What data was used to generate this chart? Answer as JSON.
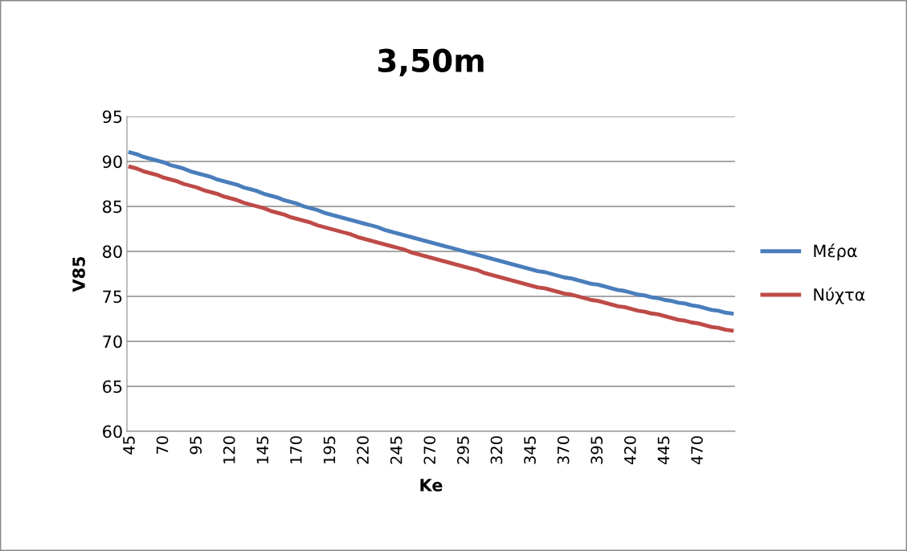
{
  "chart_data": {
    "type": "line",
    "title": "3,50m",
    "xlabel": "Ke",
    "ylabel": "V85",
    "categories": [
      "45",
      null,
      null,
      null,
      null,
      "70",
      null,
      null,
      null,
      null,
      "95",
      null,
      null,
      null,
      null,
      "120",
      null,
      null,
      null,
      null,
      "145",
      null,
      null,
      null,
      null,
      "170",
      null,
      null,
      null,
      null,
      "195",
      null,
      null,
      null,
      null,
      "220",
      null,
      null,
      null,
      null,
      "245",
      null,
      null,
      null,
      null,
      "270",
      null,
      null,
      null,
      null,
      "295",
      null,
      null,
      null,
      null,
      "320",
      null,
      null,
      null,
      null,
      "345",
      null,
      null,
      null,
      null,
      "370",
      null,
      null,
      null,
      null,
      "395",
      null,
      null,
      null,
      null,
      "420",
      null,
      null,
      null,
      null,
      "445",
      null,
      null,
      null,
      null,
      "470",
      null,
      null,
      null,
      null,
      null
    ],
    "series": [
      {
        "name": "Μέρα",
        "color": "#4a7ebb",
        "values": [
          91.0,
          90.8,
          90.5,
          90.3,
          90.1,
          89.9,
          89.6,
          89.4,
          89.2,
          88.9,
          88.7,
          88.5,
          88.3,
          88.0,
          87.8,
          87.6,
          87.4,
          87.1,
          86.9,
          86.7,
          86.4,
          86.2,
          86.0,
          85.7,
          85.5,
          85.3,
          85.0,
          84.8,
          84.6,
          84.3,
          84.1,
          83.9,
          83.7,
          83.5,
          83.3,
          83.1,
          82.9,
          82.7,
          82.4,
          82.2,
          82.0,
          81.8,
          81.6,
          81.4,
          81.2,
          81.0,
          80.8,
          80.6,
          80.4,
          80.2,
          80.0,
          79.8,
          79.6,
          79.4,
          79.2,
          79.0,
          78.8,
          78.6,
          78.4,
          78.2,
          78.0,
          77.8,
          77.7,
          77.5,
          77.3,
          77.1,
          77.0,
          76.8,
          76.6,
          76.4,
          76.3,
          76.1,
          75.9,
          75.7,
          75.6,
          75.4,
          75.2,
          75.1,
          74.9,
          74.8,
          74.6,
          74.5,
          74.3,
          74.2,
          74.0,
          73.9,
          73.7,
          73.5,
          73.4,
          73.2,
          73.1
        ]
      },
      {
        "name": "Νύχτα",
        "color": "#be4b48",
        "values": [
          89.4,
          89.2,
          88.9,
          88.7,
          88.5,
          88.2,
          88.0,
          87.8,
          87.5,
          87.3,
          87.1,
          86.8,
          86.6,
          86.4,
          86.1,
          85.9,
          85.7,
          85.4,
          85.2,
          85.0,
          84.8,
          84.5,
          84.3,
          84.1,
          83.8,
          83.6,
          83.4,
          83.2,
          82.9,
          82.7,
          82.5,
          82.3,
          82.1,
          81.9,
          81.6,
          81.4,
          81.2,
          81.0,
          80.8,
          80.6,
          80.4,
          80.2,
          79.9,
          79.7,
          79.5,
          79.3,
          79.1,
          78.9,
          78.7,
          78.5,
          78.3,
          78.1,
          77.9,
          77.6,
          77.4,
          77.2,
          77.0,
          76.8,
          76.6,
          76.4,
          76.2,
          76.0,
          75.9,
          75.7,
          75.5,
          75.3,
          75.2,
          75.0,
          74.8,
          74.6,
          74.5,
          74.3,
          74.1,
          73.9,
          73.8,
          73.6,
          73.4,
          73.3,
          73.1,
          73.0,
          72.8,
          72.6,
          72.4,
          72.3,
          72.1,
          72.0,
          71.8,
          71.6,
          71.5,
          71.3,
          71.2
        ]
      }
    ],
    "ylim": [
      60,
      95
    ],
    "yticks": [
      60,
      65,
      70,
      75,
      80,
      85,
      90,
      95
    ],
    "grid": "y",
    "legend": "right",
    "marker": "none",
    "line_style": "solid"
  }
}
